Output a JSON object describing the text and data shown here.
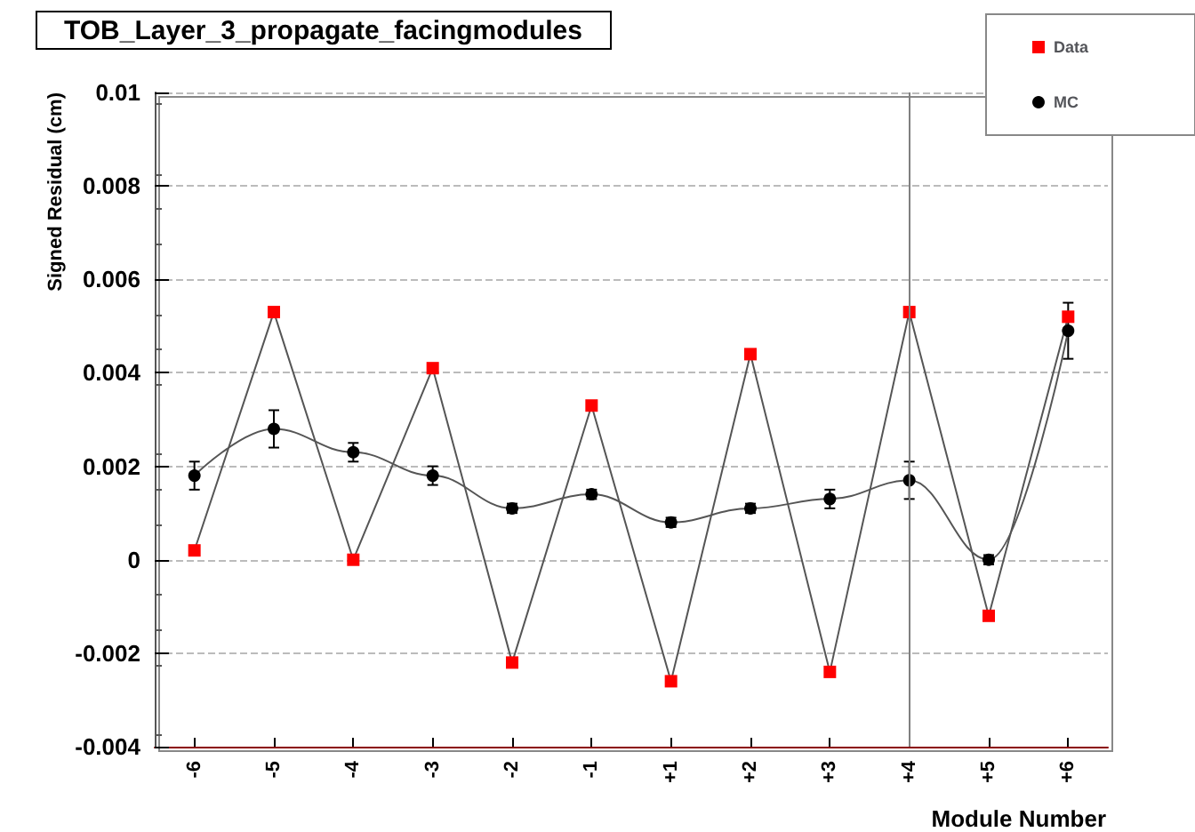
{
  "chart_data": {
    "type": "line",
    "title": "TOB_Layer_3_propagate_facingmodules",
    "xlabel": "Module Number",
    "ylabel": "Signed Residual (cm)",
    "categories": [
      "-6",
      "-5",
      "-4",
      "-3",
      "-2",
      "-1",
      "+1",
      "+2",
      "+3",
      "+4",
      "+5",
      "+6"
    ],
    "ylim": [
      -0.004,
      0.01
    ],
    "yticks": [
      -0.004,
      -0.002,
      0,
      0.002,
      0.004,
      0.006,
      0.008,
      0.01
    ],
    "grid": "y",
    "legend": "top right",
    "ref_lines": [
      {
        "axis": "x",
        "value": "+4",
        "color": "#808080"
      }
    ],
    "series": [
      {
        "name": "Data",
        "color": "#ff0000",
        "marker": "square",
        "values": [
          0.0002,
          0.0053,
          0.0,
          0.0041,
          -0.0022,
          0.0033,
          -0.0026,
          0.0044,
          -0.0024,
          0.0053,
          -0.0012,
          0.0052
        ]
      },
      {
        "name": "MC",
        "color": "#000000",
        "marker": "circle",
        "values": [
          0.0018,
          0.0028,
          0.0023,
          0.0018,
          0.0011,
          0.0014,
          0.0008,
          0.0011,
          0.0013,
          0.0017,
          0.0,
          0.0049
        ],
        "errors": [
          0.0003,
          0.0004,
          0.0002,
          0.0002,
          0.0001,
          0.0001,
          0.0001,
          0.0001,
          0.0002,
          0.0004,
          0.0001,
          0.0006
        ]
      }
    ]
  }
}
